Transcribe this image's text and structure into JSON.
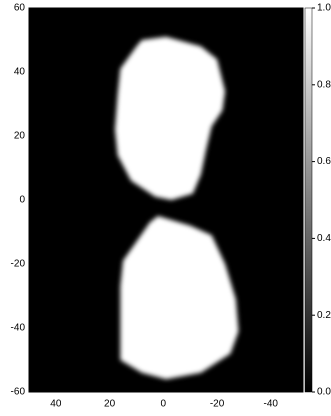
{
  "chart_data": {
    "type": "image",
    "xlim": [
      50,
      -52
    ],
    "xticks": [
      40,
      20,
      0,
      -20,
      -40
    ],
    "ylim": [
      -60,
      60
    ],
    "yticks": [
      -60,
      -40,
      -20,
      0,
      20,
      40,
      60
    ],
    "clim": [
      0,
      1
    ],
    "cticks": [
      {
        "value": 0,
        "label": "0.0"
      },
      0.2,
      0.4,
      0.6,
      0.8,
      {
        "value": 1,
        "label": "1.0"
      }
    ],
    "background": 0,
    "shapes": [
      {
        "value": 1,
        "x": [
          8,
          -1,
          -14,
          -20,
          -23,
          -22,
          -18,
          -16,
          -14,
          -11,
          -3,
          3,
          12,
          17,
          18,
          17,
          16,
          10
        ],
        "y": [
          50,
          51,
          48,
          44,
          34,
          28,
          23,
          16,
          8,
          2,
          0,
          1,
          6,
          14,
          22,
          33,
          41,
          48
        ]
      },
      {
        "value": 1,
        "x": [
          5,
          2,
          -10,
          -18,
          -23,
          -27,
          -28,
          -25,
          -14,
          -1,
          8,
          16,
          16,
          16,
          15,
          10
        ],
        "y": [
          -7,
          -5,
          -8,
          -11,
          -20,
          -31,
          -41,
          -48,
          -54,
          -56,
          -54,
          -50,
          -38,
          -27,
          -19,
          -13
        ]
      }
    ]
  }
}
